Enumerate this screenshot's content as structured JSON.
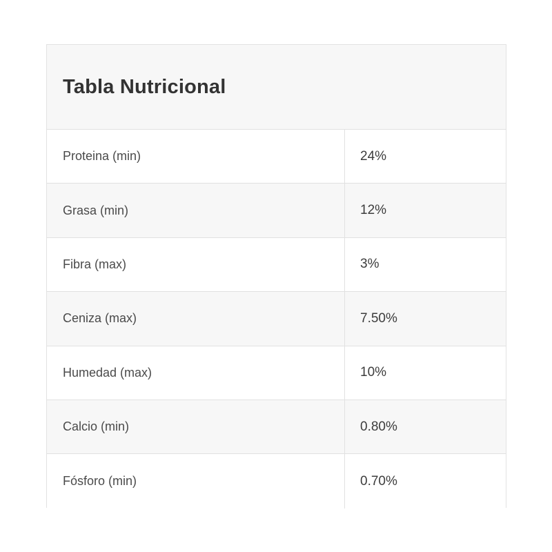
{
  "card": {
    "title": "Tabla Nutricional"
  },
  "colors": {
    "card_border": "#e2e2e2",
    "header_bg": "#f7f7f7",
    "row_alt_bg": "#f7f7f7",
    "row_bg": "#ffffff",
    "divider": "#e1e1e1",
    "title_text": "#333333",
    "label_text": "#4a4a4a",
    "value_text": "#3c3c3c"
  },
  "table": {
    "rows": [
      {
        "label": "Proteina (min)",
        "value": "24%"
      },
      {
        "label": "Grasa (min)",
        "value": "12%"
      },
      {
        "label": "Fibra (max)",
        "value": "3%"
      },
      {
        "label": "Ceniza (max)",
        "value": "7.50%"
      },
      {
        "label": "Humedad (max)",
        "value": "10%"
      },
      {
        "label": "Calcio (min)",
        "value": "0.80%"
      },
      {
        "label": "Fósforo (min)",
        "value": "0.70%"
      }
    ]
  }
}
